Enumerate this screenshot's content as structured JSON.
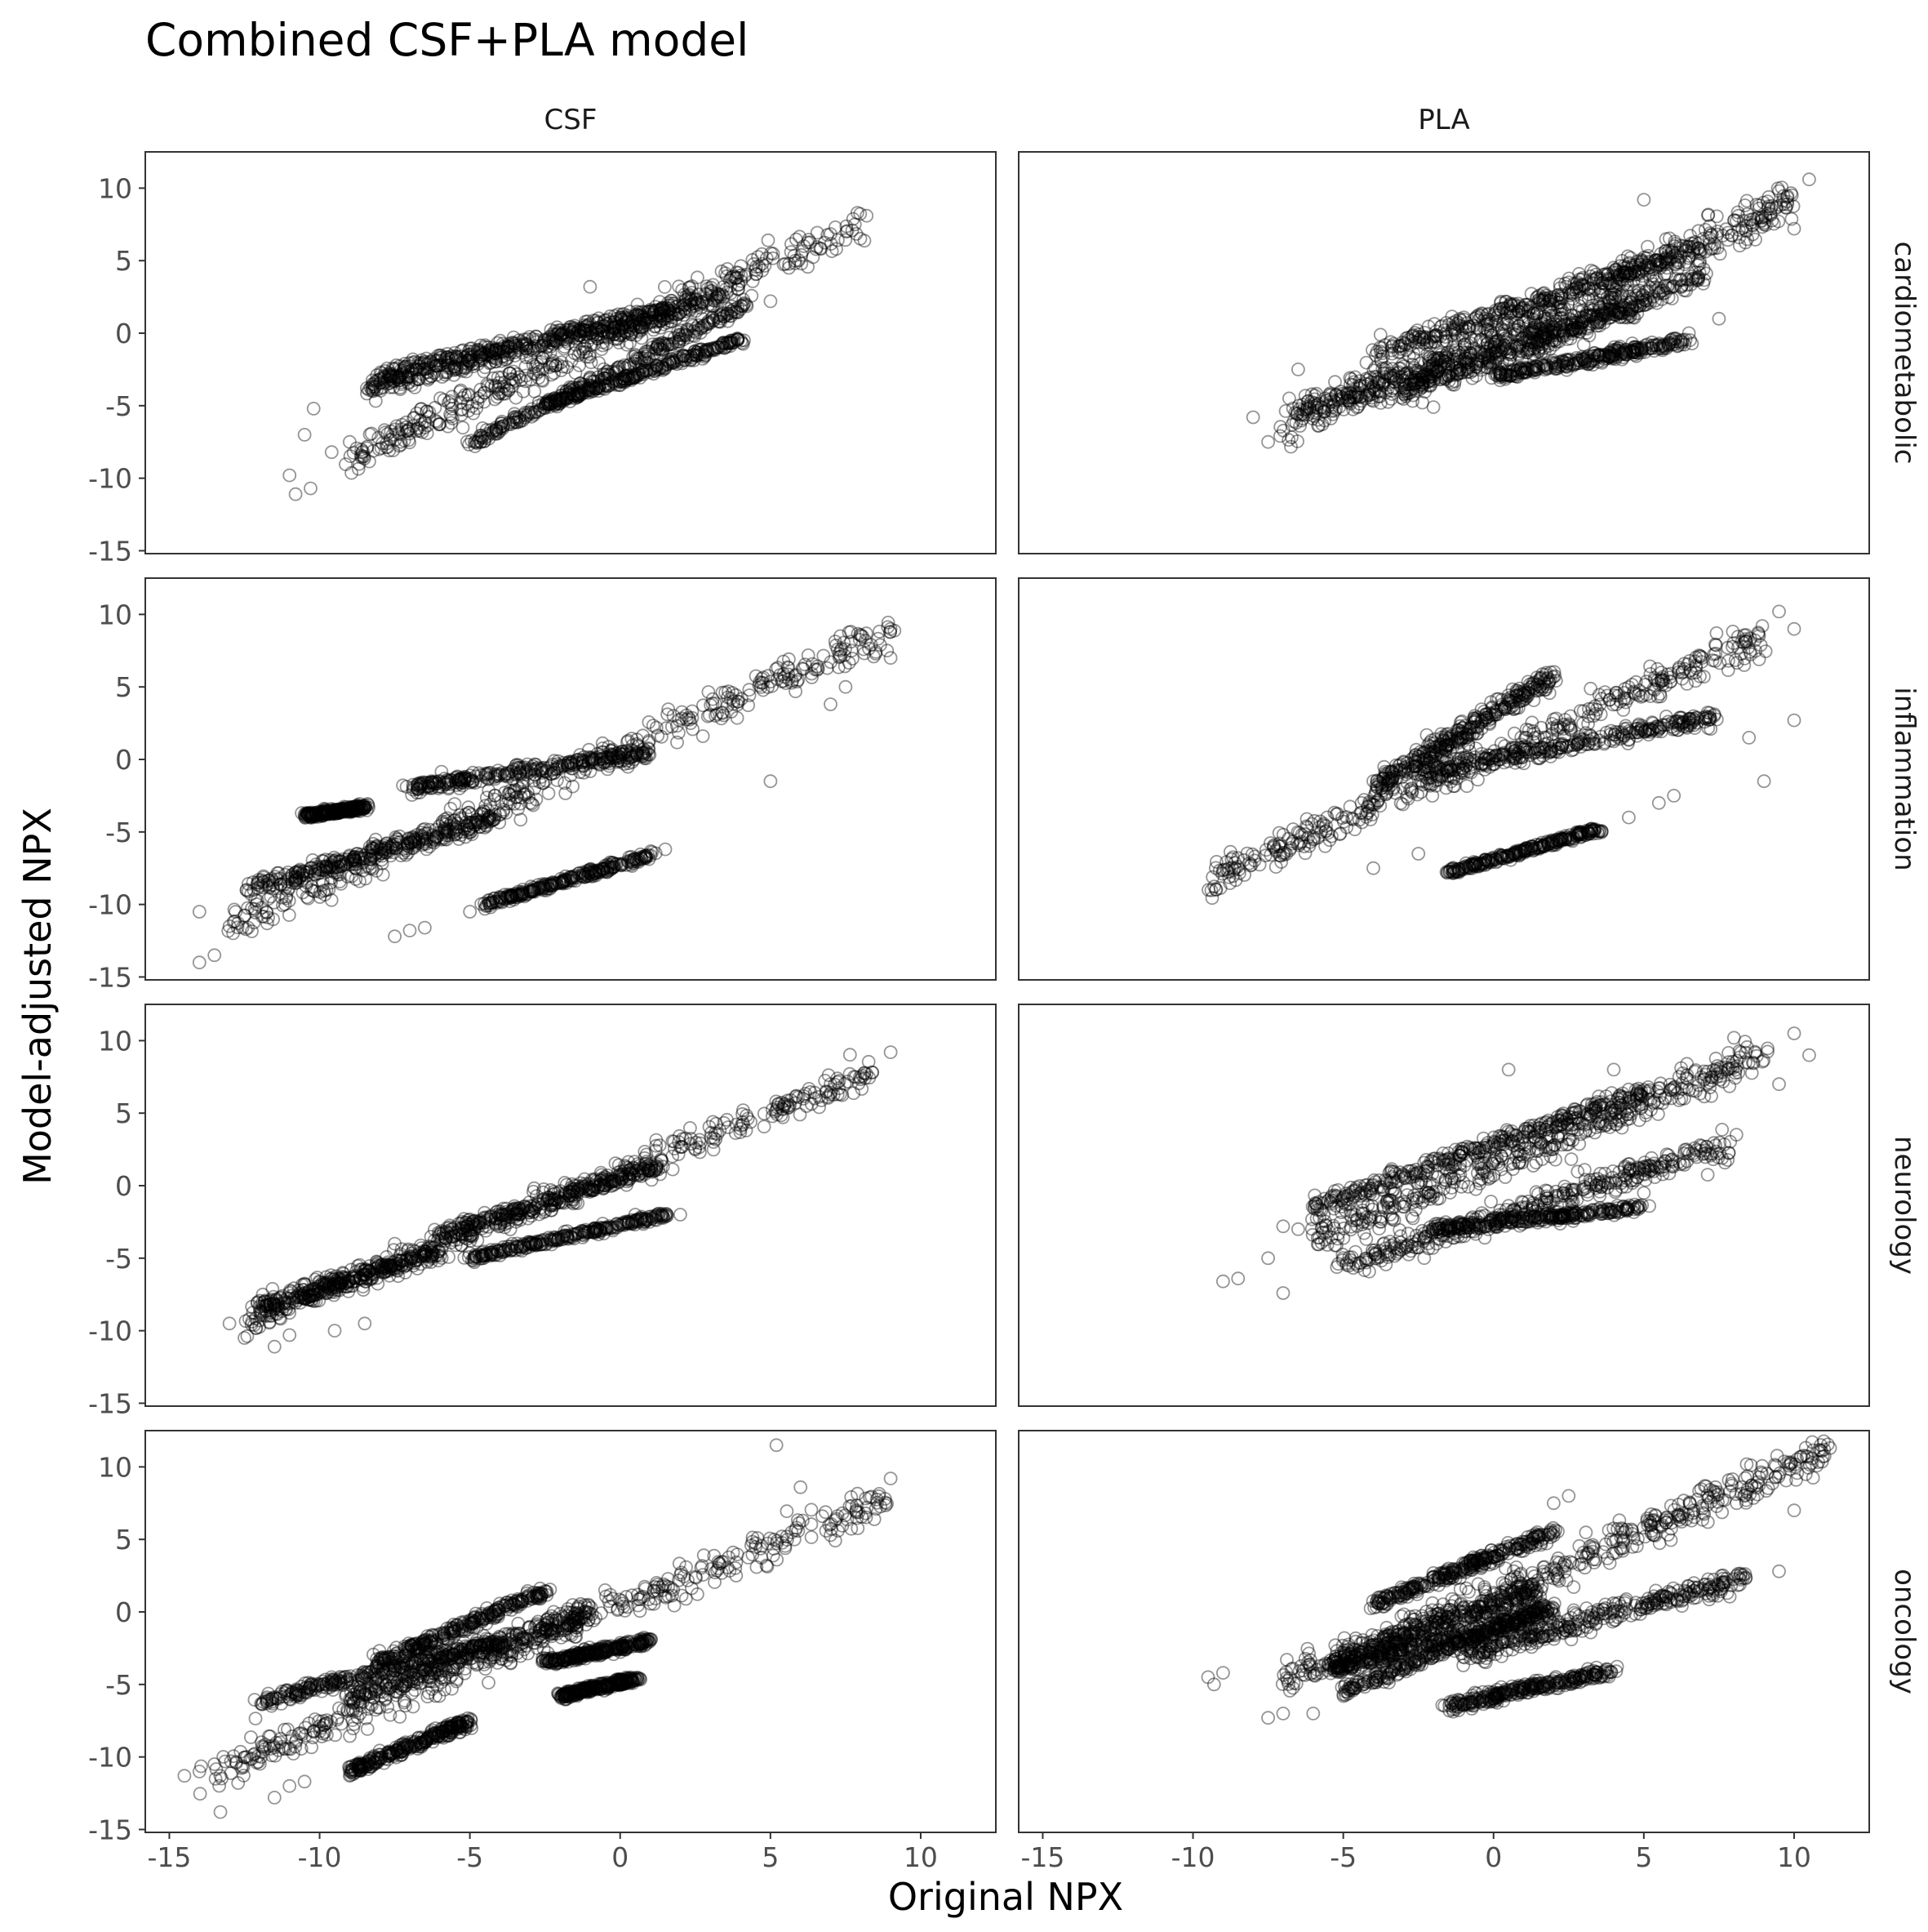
{
  "chart_data": {
    "type": "scatter",
    "title": "Combined CSF+PLA model",
    "xlabel": "Original NPX",
    "ylabel": "Model-adjusted NPX",
    "columns": [
      "CSF",
      "PLA"
    ],
    "rows": [
      "cardiometabolic",
      "inflammation",
      "neurology",
      "oncology"
    ],
    "xlim": [
      -15.8,
      12.5
    ],
    "ylim": [
      -15.2,
      12.5
    ],
    "x_ticks": [
      -15,
      -10,
      -5,
      0,
      5,
      10
    ],
    "y_ticks": [
      -15,
      -10,
      -5,
      0,
      5,
      10
    ],
    "x_tick_labels": [
      "-15",
      "-10",
      "-5",
      "0",
      "5",
      "10"
    ],
    "y_tick_labels": [
      "-15",
      "-10",
      "-5",
      "0",
      "5",
      "10"
    ],
    "grid": false,
    "point_color": "#000000",
    "panels": [
      {
        "column": "CSF",
        "row": "cardiometabolic",
        "bands": [
          {
            "x": [
              -9.0,
              8.0
            ],
            "y": [
              -8.5,
              7.5
            ],
            "spread": 1.3
          },
          {
            "x": [
              -8.0,
              3.5
            ],
            "y": [
              -2.8,
              2.5
            ],
            "spread": 0.5
          },
          {
            "x": [
              -5.0,
              4.2
            ],
            "y": [
              -7.6,
              2.0
            ],
            "spread": 0.4
          },
          {
            "x": [
              -2.5,
              4.0
            ],
            "y": [
              -5.0,
              -0.4
            ],
            "spread": 0.3
          },
          {
            "x": [
              -8.5,
              2.0
            ],
            "y": [
              -3.8,
              1.5
            ],
            "spread": 0.8
          }
        ],
        "outliers": [
          [
            -11.0,
            -9.8
          ],
          [
            -10.8,
            -11.1
          ],
          [
            -10.3,
            -10.7
          ],
          [
            -10.5,
            -7.0
          ],
          [
            -10.2,
            -5.2
          ],
          [
            -9.6,
            -8.2
          ],
          [
            -9.0,
            -7.5
          ],
          [
            -1.0,
            3.2
          ],
          [
            5.0,
            2.2
          ],
          [
            8.2,
            8.1
          ]
        ]
      },
      {
        "column": "PLA",
        "row": "cardiometabolic",
        "bands": [
          {
            "x": [
              -7.0,
              10.0
            ],
            "y": [
              -6.5,
              9.0
            ],
            "spread": 1.5
          },
          {
            "x": [
              -4.0,
              7.0
            ],
            "y": [
              -1.5,
              6.0
            ],
            "spread": 0.8
          },
          {
            "x": [
              -6.5,
              7.0
            ],
            "y": [
              -5.5,
              4.0
            ],
            "spread": 1.0
          },
          {
            "x": [
              0.0,
              6.5
            ],
            "y": [
              -3.0,
              -0.5
            ],
            "spread": 0.4
          },
          {
            "x": [
              -3.0,
              5.0
            ],
            "y": [
              -4.0,
              2.0
            ],
            "spread": 0.8
          }
        ],
        "outliers": [
          [
            -8.0,
            -5.8
          ],
          [
            -7.5,
            -7.5
          ],
          [
            -6.8,
            -4.5
          ],
          [
            -6.5,
            -2.5
          ],
          [
            -2.0,
            -5.1
          ],
          [
            5.0,
            9.2
          ],
          [
            9.0,
            7.5
          ],
          [
            10.0,
            7.2
          ],
          [
            10.5,
            10.6
          ],
          [
            9.5,
            9.8
          ],
          [
            7.5,
            1.0
          ],
          [
            6.5,
            0.0
          ],
          [
            3.0,
            -0.8
          ]
        ]
      },
      {
        "column": "CSF",
        "row": "inflammation",
        "bands": [
          {
            "x": [
              -13.0,
              9.0
            ],
            "y": [
              -11.5,
              9.0
            ],
            "spread": 1.3
          },
          {
            "x": [
              -10.5,
              -8.5
            ],
            "y": [
              -3.9,
              -3.3
            ],
            "spread": 0.2
          },
          {
            "x": [
              -7.0,
              1.0
            ],
            "y": [
              -2.0,
              0.5
            ],
            "spread": 0.5
          },
          {
            "x": [
              -4.5,
              1.2
            ],
            "y": [
              -10.0,
              -6.5
            ],
            "spread": 0.25
          },
          {
            "x": [
              -12.5,
              -4.0
            ],
            "y": [
              -9.0,
              -4.0
            ],
            "spread": 0.6
          }
        ],
        "outliers": [
          [
            -14.0,
            -14.0
          ],
          [
            -13.5,
            -13.5
          ],
          [
            -14.0,
            -10.5
          ],
          [
            -13.0,
            -11.5
          ],
          [
            -7.5,
            -12.2
          ],
          [
            -7.0,
            -11.8
          ],
          [
            -6.5,
            -11.6
          ],
          [
            -5.0,
            -10.5
          ],
          [
            -4.5,
            -10.3
          ],
          [
            1.5,
            -6.2
          ],
          [
            5.0,
            -1.5
          ],
          [
            7.0,
            3.8
          ],
          [
            7.5,
            5.0
          ],
          [
            9.0,
            7.0
          ],
          [
            9.0,
            9.0
          ]
        ]
      },
      {
        "column": "PLA",
        "row": "inflammation",
        "bands": [
          {
            "x": [
              -9.5,
              9.0
            ],
            "y": [
              -8.3,
              8.5
            ],
            "spread": 1.2
          },
          {
            "x": [
              -4.0,
              2.0
            ],
            "y": [
              -2.0,
              5.8
            ],
            "spread": 0.8
          },
          {
            "x": [
              -1.5,
              3.5
            ],
            "y": [
              -7.8,
              -4.8
            ],
            "spread": 0.2
          },
          {
            "x": [
              -2.5,
              7.5
            ],
            "y": [
              -1.0,
              3.0
            ],
            "spread": 0.6
          }
        ],
        "outliers": [
          [
            -3.5,
            -1.5
          ],
          [
            -3.0,
            -2.0
          ],
          [
            -2.5,
            -6.5
          ],
          [
            -4.0,
            -7.5
          ],
          [
            4.5,
            -4.0
          ],
          [
            5.5,
            -3.0
          ],
          [
            6.0,
            -2.5
          ],
          [
            9.0,
            -1.5
          ],
          [
            10.0,
            2.7
          ],
          [
            9.5,
            10.2
          ],
          [
            10.0,
            9.0
          ],
          [
            8.5,
            1.5
          ]
        ]
      },
      {
        "column": "CSF",
        "row": "neurology",
        "bands": [
          {
            "x": [
              -12.5,
              8.5
            ],
            "y": [
              -9.5,
              8.0
            ],
            "spread": 1.0
          },
          {
            "x": [
              -6.0,
              1.5
            ],
            "y": [
              -3.5,
              1.5
            ],
            "spread": 0.6
          },
          {
            "x": [
              -5.0,
              1.5
            ],
            "y": [
              -5.0,
              -2.0
            ],
            "spread": 0.3
          },
          {
            "x": [
              -12.0,
              -6.0
            ],
            "y": [
              -8.5,
              -4.5
            ],
            "spread": 0.7
          }
        ],
        "outliers": [
          [
            -13.0,
            -9.5
          ],
          [
            -12.5,
            -10.5
          ],
          [
            -11.5,
            -11.1
          ],
          [
            -11.0,
            -10.3
          ],
          [
            -9.5,
            -10.0
          ],
          [
            -8.5,
            -9.5
          ],
          [
            -7.5,
            -4.0
          ],
          [
            0.5,
            -2.0
          ],
          [
            2.0,
            -2.0
          ],
          [
            9.0,
            9.2
          ]
        ]
      },
      {
        "column": "PLA",
        "row": "neurology",
        "bands": [
          {
            "x": [
              -6.0,
              9.0
            ],
            "y": [
              -3.5,
              9.0
            ],
            "spread": 1.3
          },
          {
            "x": [
              -6.0,
              5.0
            ],
            "y": [
              -1.5,
              6.5
            ],
            "spread": 0.7
          },
          {
            "x": [
              -5.0,
              8.0
            ],
            "y": [
              -5.5,
              3.0
            ],
            "spread": 1.0
          },
          {
            "x": [
              -2.0,
              5.0
            ],
            "y": [
              -3.0,
              -1.5
            ],
            "spread": 0.3
          }
        ],
        "outliers": [
          [
            -9.0,
            -6.6
          ],
          [
            -8.5,
            -6.4
          ],
          [
            -7.5,
            -5.0
          ],
          [
            -7.0,
            -2.8
          ],
          [
            -7.0,
            -7.4
          ],
          [
            -6.5,
            -3.0
          ],
          [
            0.5,
            8.0
          ],
          [
            4.0,
            8.0
          ],
          [
            5.0,
            -0.5
          ],
          [
            8.0,
            10.2
          ],
          [
            10.0,
            10.5
          ],
          [
            10.5,
            9.0
          ],
          [
            9.5,
            7.0
          ]
        ]
      },
      {
        "column": "CSF",
        "row": "oncology",
        "bands": [
          {
            "x": [
              -14.0,
              9.0
            ],
            "y": [
              -11.5,
              8.0
            ],
            "spread": 1.3
          },
          {
            "x": [
              -8.0,
              -2.5
            ],
            "y": [
              -3.5,
              1.5
            ],
            "spread": 0.4
          },
          {
            "x": [
              -12.0,
              -4.0
            ],
            "y": [
              -6.2,
              -2.0
            ],
            "spread": 0.4
          },
          {
            "x": [
              -9.0,
              -5.0
            ],
            "y": [
              -11.0,
              -7.5
            ],
            "spread": 0.4
          },
          {
            "x": [
              -2.0,
              0.5
            ],
            "y": [
              -5.8,
              -4.6
            ],
            "spread": 0.25
          },
          {
            "x": [
              -2.5,
              1.0
            ],
            "y": [
              -3.5,
              -2.0
            ],
            "spread": 0.3
          },
          {
            "x": [
              -9.0,
              -1.0
            ],
            "y": [
              -6.0,
              0.0
            ],
            "spread": 0.9
          }
        ],
        "outliers": [
          [
            -14.5,
            -11.3
          ],
          [
            -14.0,
            -11.0
          ],
          [
            -13.5,
            -10.5
          ],
          [
            -13.3,
            -13.8
          ],
          [
            -11.5,
            -12.8
          ],
          [
            -11.0,
            -12.0
          ],
          [
            -10.5,
            -11.7
          ],
          [
            -9.0,
            -11.3
          ],
          [
            5.2,
            11.5
          ],
          [
            6.0,
            8.6
          ],
          [
            7.0,
            5.3
          ],
          [
            9.0,
            9.2
          ],
          [
            -0.5,
            1.5
          ]
        ]
      },
      {
        "column": "PLA",
        "row": "oncology",
        "bands": [
          {
            "x": [
              -7.0,
              11.0
            ],
            "y": [
              -5.0,
              11.0
            ],
            "spread": 1.4
          },
          {
            "x": [
              -5.5,
              1.5
            ],
            "y": [
              -3.5,
              1.5
            ],
            "spread": 0.8
          },
          {
            "x": [
              -5.5,
              2.0
            ],
            "y": [
              -4.0,
              0.0
            ],
            "spread": 0.5
          },
          {
            "x": [
              -5.0,
              2.0
            ],
            "y": [
              -5.5,
              0.5
            ],
            "spread": 0.4
          },
          {
            "x": [
              -1.5,
              4.0
            ],
            "y": [
              -6.5,
              -4.0
            ],
            "spread": 0.4
          },
          {
            "x": [
              -1.0,
              8.5
            ],
            "y": [
              -3.0,
              2.5
            ],
            "spread": 0.8
          },
          {
            "x": [
              -4.0,
              2.0
            ],
            "y": [
              0.5,
              5.5
            ],
            "spread": 0.5
          }
        ],
        "outliers": [
          [
            -9.5,
            -4.5
          ],
          [
            -9.3,
            -5.0
          ],
          [
            -9.0,
            -4.2
          ],
          [
            -7.5,
            -7.3
          ],
          [
            -7.0,
            -7.0
          ],
          [
            -6.0,
            -7.0
          ],
          [
            2.0,
            7.5
          ],
          [
            2.5,
            8.0
          ],
          [
            9.5,
            2.8
          ],
          [
            10.0,
            7.0
          ],
          [
            11.0,
            11.2
          ],
          [
            11.2,
            11.3
          ]
        ]
      }
    ]
  }
}
